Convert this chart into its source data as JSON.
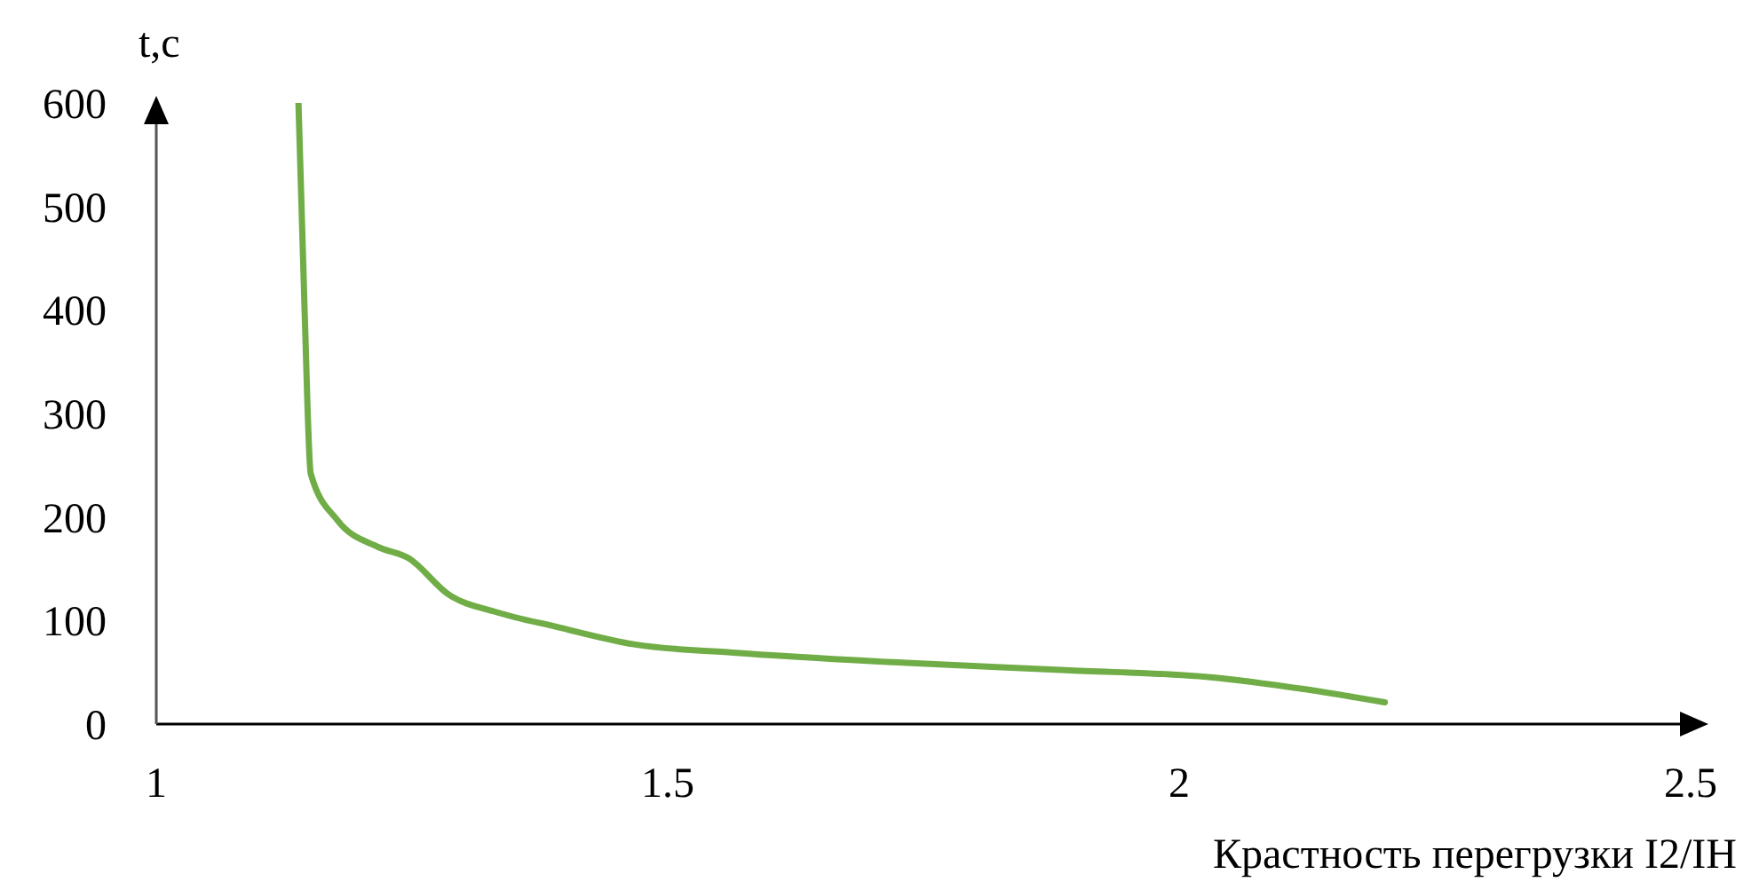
{
  "chart_data": {
    "type": "line",
    "xlabel": "Крастность перегрузки I2/IН",
    "ylabel": "t,c",
    "x": [
      1.139,
      1.145,
      1.151,
      1.177,
      1.217,
      1.247,
      1.286,
      1.333,
      1.391,
      1.467,
      1.564,
      1.715,
      1.889,
      2.033,
      2.12,
      2.201
    ],
    "series": [
      {
        "color": "#70ad47",
        "values": [
          600,
          400,
          242,
          197,
          171,
          160,
          125,
          108,
          94,
          77,
          69,
          60,
          52,
          45,
          34,
          21
        ]
      }
    ],
    "xlim": [
      1,
      2.5
    ],
    "xticks": [
      1,
      1.5,
      2,
      2.5
    ],
    "ylim": [
      0,
      600
    ],
    "yticks": [
      0,
      100,
      200,
      300,
      400,
      500,
      600
    ],
    "grid": false,
    "marker": "none",
    "line_style": "solid"
  }
}
